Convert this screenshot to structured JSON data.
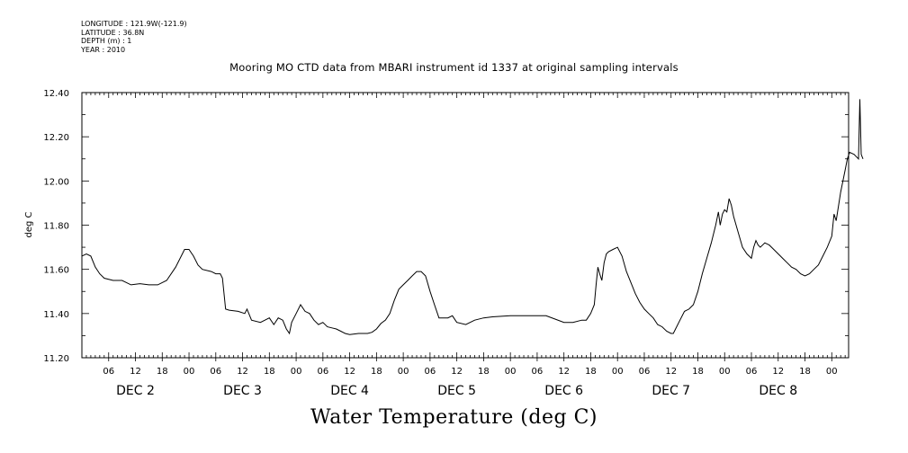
{
  "meta": {
    "longitude": "LONGITUDE : 121.9W(-121.9)",
    "latitude": "LATITUDE : 36.8N",
    "depth": "DEPTH (m) : 1",
    "year": "YEAR : 2010"
  },
  "title": "Mooring MO CTD data from MBARI instrument id 1337 at original sampling intervals",
  "footer_label": "Water Temperature (deg C)",
  "chart_data": {
    "type": "line",
    "title": "Mooring MO CTD data from MBARI instrument id 1337 at original sampling intervals",
    "xlabel": "",
    "ylabel": "deg C",
    "xlim": [
      0,
      171
    ],
    "ylim": [
      11.2,
      12.4
    ],
    "x_unit": "hours since 00:00 Dec 2",
    "y_ticks": [
      "11.20",
      "11.40",
      "11.60",
      "11.80",
      "12.00",
      "12.20",
      "12.40"
    ],
    "y_tick_values": [
      11.2,
      11.4,
      11.6,
      11.8,
      12.0,
      12.2,
      12.4
    ],
    "x_ticks": [
      {
        "t": 6,
        "label": "06"
      },
      {
        "t": 12,
        "label": "12"
      },
      {
        "t": 18,
        "label": "18"
      },
      {
        "t": 24,
        "label": "00"
      },
      {
        "t": 30,
        "label": "06"
      },
      {
        "t": 36,
        "label": "12"
      },
      {
        "t": 42,
        "label": "18"
      },
      {
        "t": 48,
        "label": "00"
      },
      {
        "t": 54,
        "label": "06"
      },
      {
        "t": 60,
        "label": "12"
      },
      {
        "t": 66,
        "label": "18"
      },
      {
        "t": 72,
        "label": "00"
      },
      {
        "t": 78,
        "label": "06"
      },
      {
        "t": 84,
        "label": "12"
      },
      {
        "t": 90,
        "label": "18"
      },
      {
        "t": 96,
        "label": "00"
      },
      {
        "t": 102,
        "label": "06"
      },
      {
        "t": 108,
        "label": "12"
      },
      {
        "t": 114,
        "label": "18"
      },
      {
        "t": 120,
        "label": "00"
      },
      {
        "t": 126,
        "label": "06"
      },
      {
        "t": 132,
        "label": "12"
      },
      {
        "t": 138,
        "label": "18"
      },
      {
        "t": 144,
        "label": "00"
      },
      {
        "t": 150,
        "label": "06"
      },
      {
        "t": 156,
        "label": "12"
      },
      {
        "t": 162,
        "label": "18"
      },
      {
        "t": 168,
        "label": "00"
      }
    ],
    "day_labels": [
      {
        "t": 12,
        "label": "DEC  2"
      },
      {
        "t": 36,
        "label": "DEC  3"
      },
      {
        "t": 60,
        "label": "DEC  4"
      },
      {
        "t": 84,
        "label": "DEC  5"
      },
      {
        "t": 108,
        "label": "DEC  6"
      },
      {
        "t": 132,
        "label": "DEC  7"
      },
      {
        "t": 156,
        "label": "DEC  8"
      }
    ],
    "series": [
      {
        "name": "Water Temperature",
        "color": "#000000",
        "points": [
          [
            0,
            11.66
          ],
          [
            1,
            11.67
          ],
          [
            2,
            11.66
          ],
          [
            3,
            11.61
          ],
          [
            4,
            11.58
          ],
          [
            5,
            11.56
          ],
          [
            7,
            11.55
          ],
          [
            9,
            11.55
          ],
          [
            11,
            11.53
          ],
          [
            13,
            11.535
          ],
          [
            15,
            11.53
          ],
          [
            17,
            11.53
          ],
          [
            19,
            11.55
          ],
          [
            21,
            11.61
          ],
          [
            23,
            11.69
          ],
          [
            24,
            11.69
          ],
          [
            25,
            11.66
          ],
          [
            26,
            11.62
          ],
          [
            27,
            11.6
          ],
          [
            29,
            11.59
          ],
          [
            30,
            11.58
          ],
          [
            31,
            11.58
          ],
          [
            31.5,
            11.56
          ],
          [
            32.2,
            11.42
          ],
          [
            33,
            11.415
          ],
          [
            35,
            11.41
          ],
          [
            36.5,
            11.4
          ],
          [
            37,
            11.42
          ],
          [
            38,
            11.37
          ],
          [
            40,
            11.36
          ],
          [
            41,
            11.37
          ],
          [
            42,
            11.38
          ],
          [
            43,
            11.35
          ],
          [
            44,
            11.38
          ],
          [
            45,
            11.37
          ],
          [
            45.8,
            11.33
          ],
          [
            46.5,
            11.31
          ],
          [
            47,
            11.36
          ],
          [
            48,
            11.4
          ],
          [
            49,
            11.44
          ],
          [
            50,
            11.41
          ],
          [
            51,
            11.4
          ],
          [
            52,
            11.37
          ],
          [
            53,
            11.35
          ],
          [
            54,
            11.36
          ],
          [
            55,
            11.34
          ],
          [
            56,
            11.335
          ],
          [
            57,
            11.33
          ],
          [
            58,
            11.32
          ],
          [
            59,
            11.31
          ],
          [
            60,
            11.305
          ],
          [
            62,
            11.31
          ],
          [
            64,
            11.31
          ],
          [
            65,
            11.315
          ],
          [
            66,
            11.33
          ],
          [
            67,
            11.355
          ],
          [
            68,
            11.37
          ],
          [
            69,
            11.4
          ],
          [
            70,
            11.46
          ],
          [
            71,
            11.51
          ],
          [
            72,
            11.53
          ],
          [
            73,
            11.55
          ],
          [
            74,
            11.57
          ],
          [
            75,
            11.59
          ],
          [
            76,
            11.59
          ],
          [
            77,
            11.57
          ],
          [
            78,
            11.5
          ],
          [
            79,
            11.44
          ],
          [
            80,
            11.38
          ],
          [
            81,
            11.38
          ],
          [
            82,
            11.38
          ],
          [
            83,
            11.39
          ],
          [
            84,
            11.36
          ],
          [
            86,
            11.35
          ],
          [
            88,
            11.37
          ],
          [
            90,
            11.38
          ],
          [
            92,
            11.385
          ],
          [
            96,
            11.39
          ],
          [
            100,
            11.39
          ],
          [
            104,
            11.39
          ],
          [
            106,
            11.375
          ],
          [
            108,
            11.36
          ],
          [
            110,
            11.36
          ],
          [
            112,
            11.37
          ],
          [
            113,
            11.37
          ],
          [
            114,
            11.4
          ],
          [
            114.8,
            11.44
          ],
          [
            115.2,
            11.53
          ],
          [
            115.6,
            11.61
          ],
          [
            116,
            11.58
          ],
          [
            116.5,
            11.55
          ],
          [
            117,
            11.63
          ],
          [
            117.5,
            11.67
          ],
          [
            118,
            11.68
          ],
          [
            119,
            11.69
          ],
          [
            120,
            11.7
          ],
          [
            121,
            11.66
          ],
          [
            122,
            11.59
          ],
          [
            123,
            11.54
          ],
          [
            124,
            11.49
          ],
          [
            125,
            11.45
          ],
          [
            126,
            11.42
          ],
          [
            127,
            11.4
          ],
          [
            128,
            11.38
          ],
          [
            129,
            11.35
          ],
          [
            130,
            11.34
          ],
          [
            131,
            11.32
          ],
          [
            132,
            11.31
          ],
          [
            132.5,
            11.31
          ],
          [
            133,
            11.33
          ],
          [
            134,
            11.37
          ],
          [
            135,
            11.41
          ],
          [
            136,
            11.42
          ],
          [
            137,
            11.44
          ],
          [
            138,
            11.5
          ],
          [
            139,
            11.58
          ],
          [
            140,
            11.65
          ],
          [
            141,
            11.72
          ],
          [
            142,
            11.8
          ],
          [
            142.6,
            11.86
          ],
          [
            143,
            11.8
          ],
          [
            143.5,
            11.85
          ],
          [
            144,
            11.87
          ],
          [
            144.5,
            11.86
          ],
          [
            145,
            11.92
          ],
          [
            145.5,
            11.89
          ],
          [
            146,
            11.84
          ],
          [
            147,
            11.77
          ],
          [
            148,
            11.7
          ],
          [
            149,
            11.67
          ],
          [
            150,
            11.65
          ],
          [
            150.5,
            11.7
          ],
          [
            151,
            11.73
          ],
          [
            151.5,
            11.71
          ],
          [
            152,
            11.7
          ],
          [
            153,
            11.72
          ],
          [
            154,
            11.71
          ],
          [
            155,
            11.69
          ],
          [
            156,
            11.67
          ],
          [
            157,
            11.65
          ],
          [
            158,
            11.63
          ],
          [
            159,
            11.61
          ],
          [
            160,
            11.6
          ],
          [
            161,
            11.58
          ],
          [
            162,
            11.57
          ],
          [
            163,
            11.58
          ],
          [
            164,
            11.6
          ],
          [
            165,
            11.62
          ],
          [
            166,
            11.66
          ],
          [
            167,
            11.7
          ],
          [
            168,
            11.75
          ],
          [
            168.5,
            11.85
          ],
          [
            169,
            11.82
          ],
          [
            170,
            11.95
          ],
          [
            171,
            12.05
          ],
          [
            171.5,
            12.1
          ],
          [
            172,
            12.13
          ],
          [
            173,
            12.12
          ],
          [
            174,
            12.1
          ],
          [
            174.3,
            12.37
          ],
          [
            174.6,
            12.12
          ],
          [
            175,
            12.1
          ]
        ]
      }
    ]
  }
}
